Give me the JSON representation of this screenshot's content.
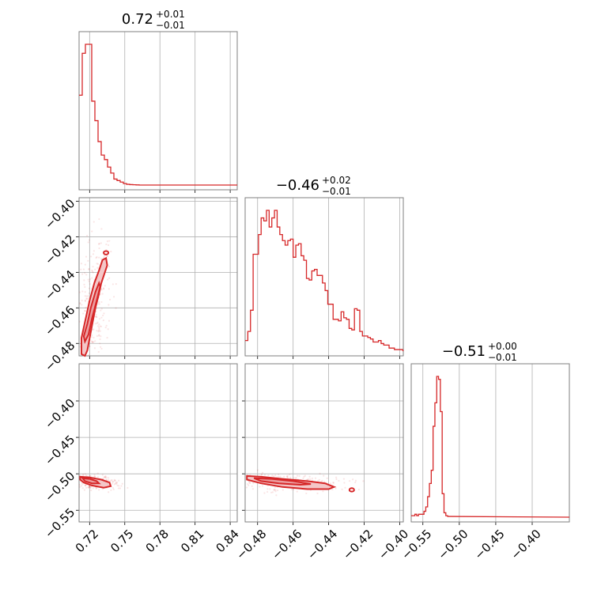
{
  "chart_data": {
    "type": "corner",
    "color": "#d62728",
    "grid": true,
    "titles": [
      {
        "value": "0.72",
        "plus": "+0.01",
        "minus": "−0.01"
      },
      {
        "value": "−0.46",
        "plus": "+0.02",
        "minus": "−0.01"
      },
      {
        "value": "−0.51",
        "plus": "+0.00",
        "minus": "−0.01"
      }
    ],
    "params": [
      {
        "range": [
          0.711,
          0.846
        ],
        "ticks": [
          0.72,
          0.75,
          0.78,
          0.81,
          0.84
        ],
        "tick_labels": [
          "0.72",
          "0.75",
          "0.78",
          "0.81",
          "0.84"
        ]
      },
      {
        "range": [
          -0.487,
          -0.398
        ],
        "ticks": [
          -0.48,
          -0.46,
          -0.44,
          -0.42,
          -0.4
        ],
        "tick_labels": [
          "−0.48",
          "−0.46",
          "−0.44",
          "−0.42",
          "−0.40"
        ]
      },
      {
        "range": [
          -0.566,
          -0.349
        ],
        "ticks": [
          -0.55,
          -0.5,
          -0.45,
          -0.4
        ],
        "tick_labels": [
          "−0.55",
          "−0.50",
          "−0.45",
          "−0.40"
        ]
      }
    ],
    "histograms": [
      {
        "param": 0,
        "bin_start": 0.711,
        "bin_width": 0.0027,
        "counts": [
          0.6,
          0.88,
          0.94,
          0.94,
          0.56,
          0.43,
          0.29,
          0.2,
          0.17,
          0.12,
          0.08,
          0.04,
          0.03,
          0.02,
          0.01,
          0.005,
          0.003,
          0.002,
          0.001,
          0,
          0
        ]
      },
      {
        "param": 1,
        "bin_start": -0.487,
        "bin_width": 0.0015,
        "counts": [
          0.07,
          0.13,
          0.27,
          0.64,
          0.64,
          0.77,
          0.88,
          0.86,
          0.93,
          0.82,
          0.88,
          0.93,
          0.82,
          0.77,
          0.73,
          0.7,
          0.73,
          0.74,
          0.62,
          0.7,
          0.71,
          0.63,
          0.6,
          0.48,
          0.47,
          0.53,
          0.54,
          0.5,
          0.5,
          0.45,
          0.4,
          0.31,
          0.31,
          0.21,
          0.21,
          0.2,
          0.26,
          0.22,
          0.21,
          0.15,
          0.14,
          0.28,
          0.27,
          0.13,
          0.1,
          0.1,
          0.09,
          0.08,
          0.06,
          0.06,
          0.07,
          0.05,
          0.04,
          0.04,
          0.02,
          0.02,
          0.01,
          0.01,
          0.01
        ]
      },
      {
        "param": 2,
        "bin_start": -0.566,
        "bin_width": 0.0025,
        "counts": [
          0.01,
          0.01,
          0.02,
          0.01,
          0.02,
          0.02,
          0.02,
          0.04,
          0.07,
          0.14,
          0.23,
          0.32,
          0.62,
          0.78,
          0.96,
          0.94,
          0.72,
          0.16,
          0.03,
          0.01,
          0.005
        ]
      }
    ],
    "contours": [
      {
        "x_param": 0,
        "y_param": 1,
        "levels": [
          {
            "shade": 1,
            "points": [
              [
                0.713,
                -0.486
              ],
              [
                0.716,
                -0.487
              ],
              [
                0.718,
                -0.484
              ],
              [
                0.722,
                -0.47
              ],
              [
                0.725,
                -0.46
              ],
              [
                0.728,
                -0.452
              ],
              [
                0.73,
                -0.446
              ],
              [
                0.733,
                -0.44
              ],
              [
                0.735,
                -0.436
              ],
              [
                0.734,
                -0.432
              ],
              [
                0.731,
                -0.433
              ],
              [
                0.728,
                -0.439
              ],
              [
                0.724,
                -0.446
              ],
              [
                0.72,
                -0.456
              ],
              [
                0.716,
                -0.468
              ],
              [
                0.713,
                -0.477
              ]
            ]
          },
          {
            "shade": 2,
            "points": [
              [
                0.716,
                -0.479
              ],
              [
                0.719,
                -0.475
              ],
              [
                0.722,
                -0.466
              ],
              [
                0.726,
                -0.456
              ],
              [
                0.729,
                -0.448
              ],
              [
                0.728,
                -0.446
              ],
              [
                0.725,
                -0.451
              ],
              [
                0.721,
                -0.46
              ],
              [
                0.718,
                -0.469
              ],
              [
                0.715,
                -0.476
              ]
            ]
          }
        ],
        "extra": [
          [
            0.734,
            -0.429
          ]
        ]
      },
      {
        "x_param": 0,
        "y_param": 2,
        "levels": [
          {
            "shade": 1,
            "points": [
              [
                0.712,
                -0.504
              ],
              [
                0.72,
                -0.505
              ],
              [
                0.73,
                -0.508
              ],
              [
                0.737,
                -0.512
              ],
              [
                0.738,
                -0.517
              ],
              [
                0.732,
                -0.519
              ],
              [
                0.722,
                -0.516
              ],
              [
                0.715,
                -0.512
              ],
              [
                0.712,
                -0.508
              ]
            ]
          },
          {
            "shade": 2,
            "points": [
              [
                0.714,
                -0.506
              ],
              [
                0.72,
                -0.507
              ],
              [
                0.726,
                -0.51
              ],
              [
                0.728,
                -0.513
              ],
              [
                0.722,
                -0.513
              ],
              [
                0.716,
                -0.51
              ]
            ]
          }
        ],
        "extra": []
      },
      {
        "x_param": 1,
        "y_param": 2,
        "levels": [
          {
            "shade": 1,
            "points": [
              [
                -0.486,
                -0.503
              ],
              [
                -0.478,
                -0.504
              ],
              [
                -0.466,
                -0.507
              ],
              [
                -0.452,
                -0.51
              ],
              [
                -0.442,
                -0.513
              ],
              [
                -0.437,
                -0.518
              ],
              [
                -0.44,
                -0.521
              ],
              [
                -0.452,
                -0.521
              ],
              [
                -0.466,
                -0.518
              ],
              [
                -0.478,
                -0.513
              ],
              [
                -0.486,
                -0.508
              ]
            ]
          },
          {
            "shade": 2,
            "points": [
              [
                -0.482,
                -0.506
              ],
              [
                -0.472,
                -0.507
              ],
              [
                -0.46,
                -0.51
              ],
              [
                -0.45,
                -0.514
              ],
              [
                -0.456,
                -0.515
              ],
              [
                -0.468,
                -0.513
              ],
              [
                -0.478,
                -0.51
              ]
            ]
          }
        ],
        "extra": [
          [
            -0.427,
            -0.522
          ]
        ]
      }
    ]
  }
}
